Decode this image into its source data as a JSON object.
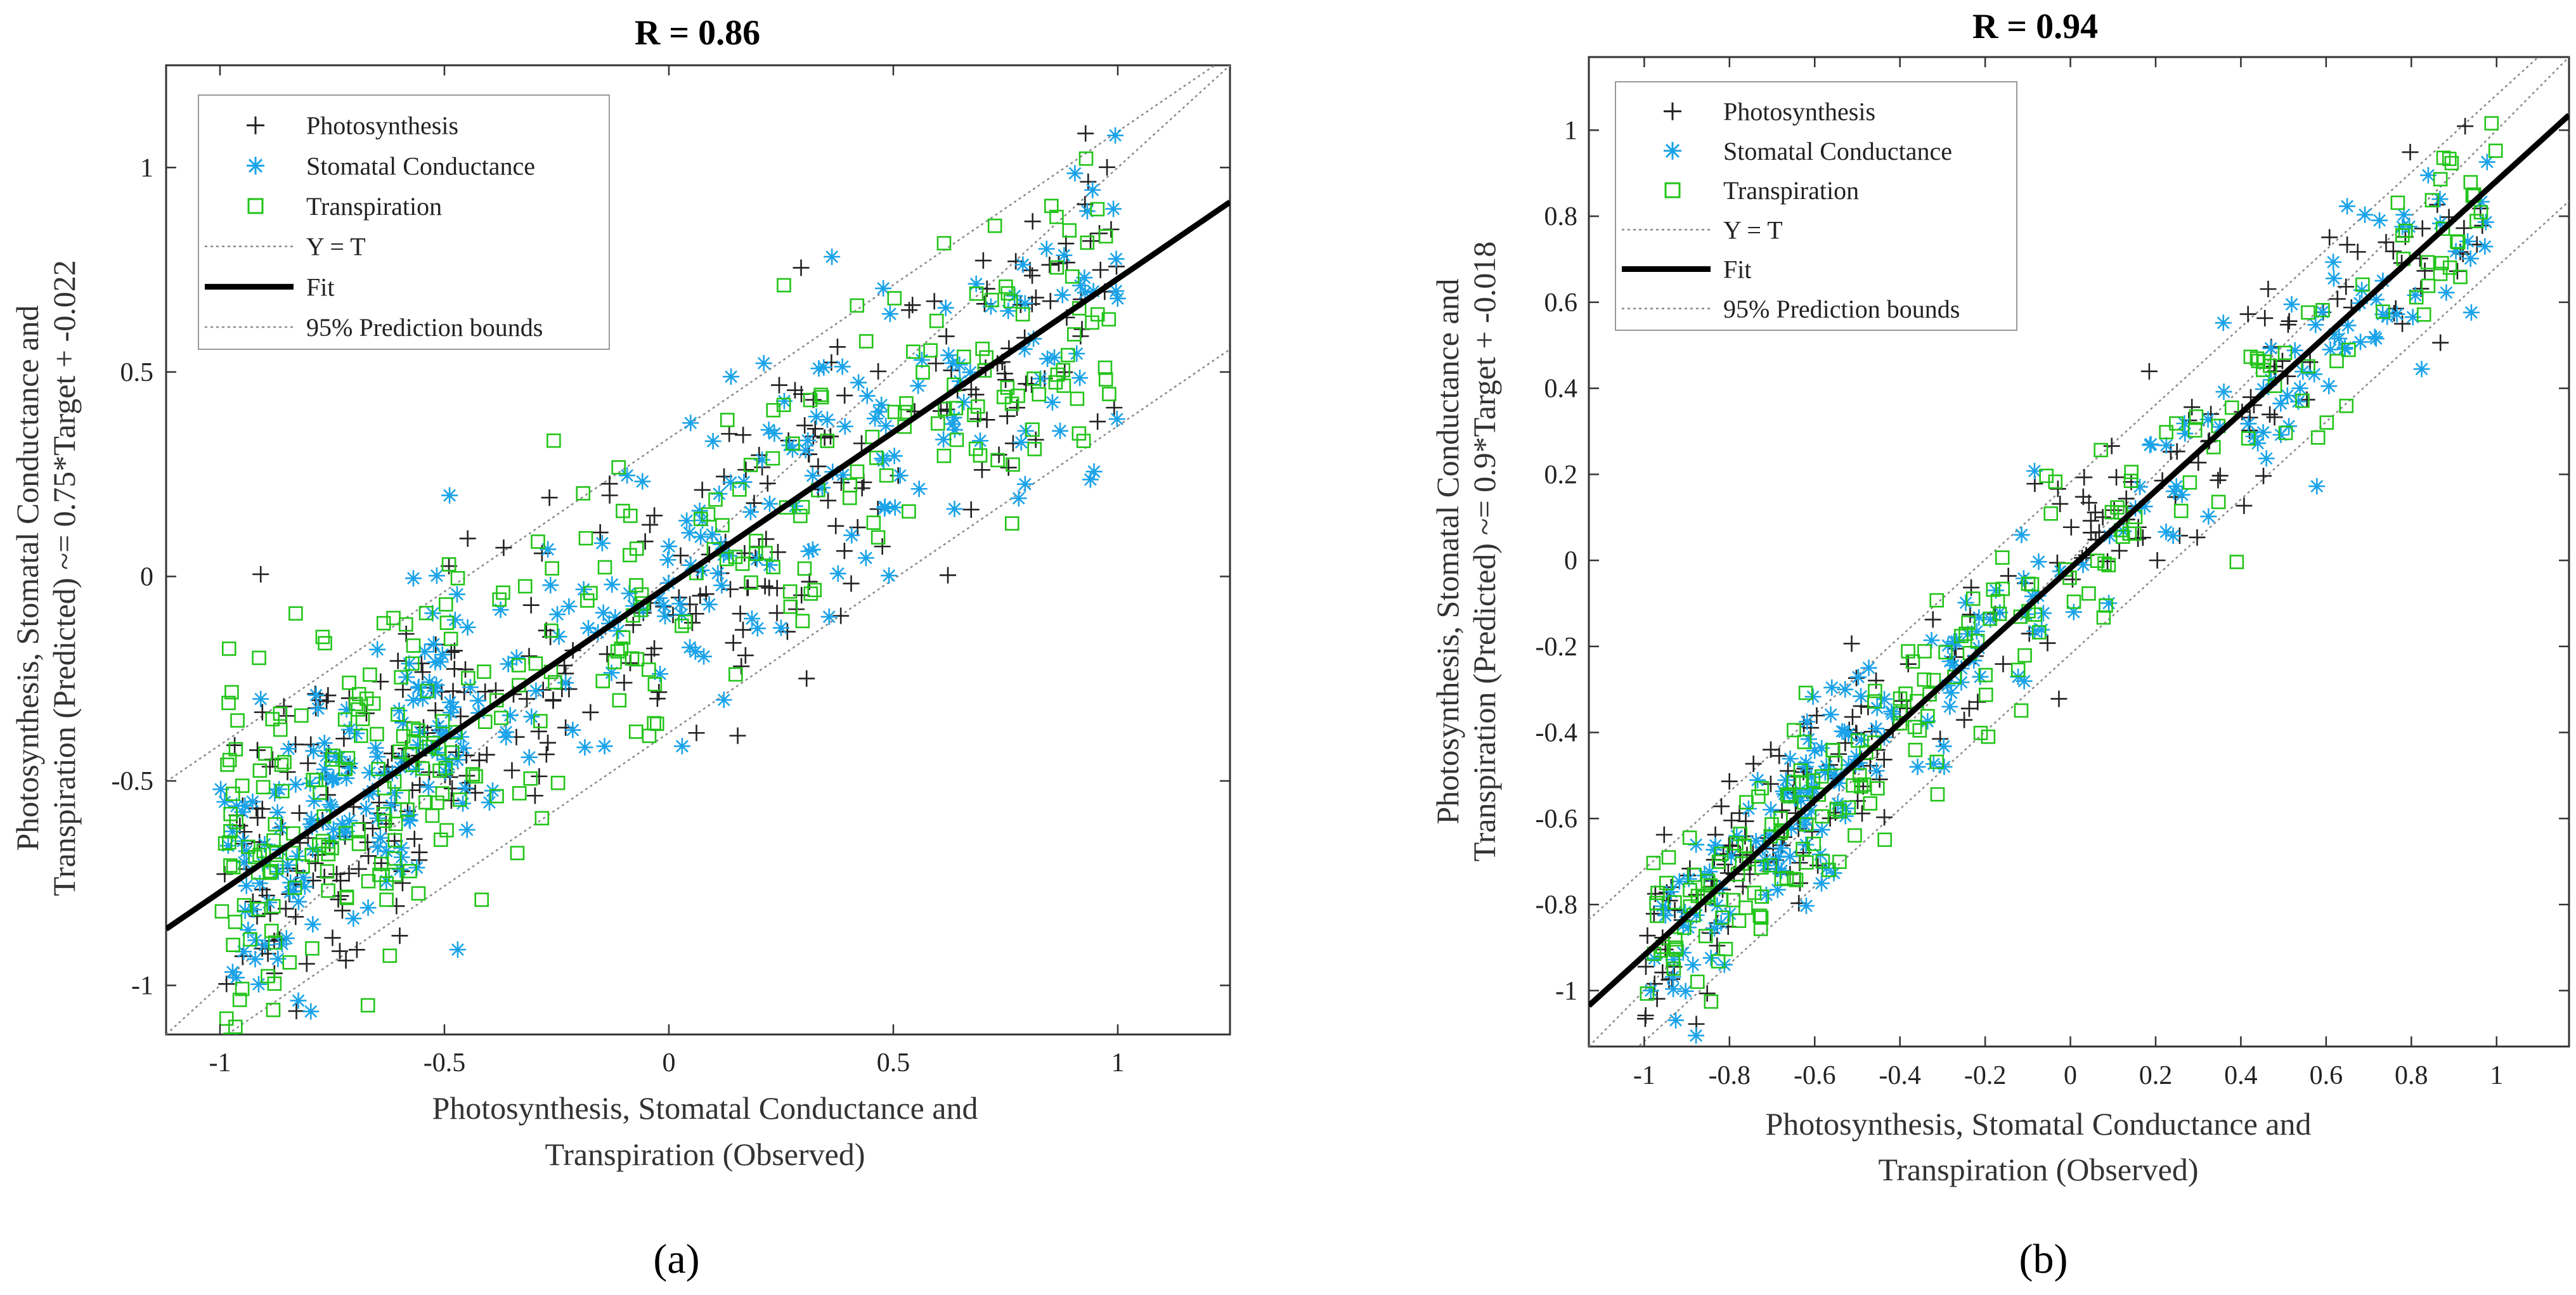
{
  "colors": {
    "photosynthesis": "#222222",
    "stomatal": "#1aa3e8",
    "transpiration": "#22c41a",
    "fit": "#000000",
    "bounds": "#8a8a8a"
  },
  "legend": {
    "photosynthesis": "Photosynthesis",
    "stomatal": "Stomatal Conductance",
    "transpiration": "Transpiration",
    "yt": "Y = T",
    "fit": "Fit",
    "bounds": "95% Prediction bounds"
  },
  "chart_data": [
    {
      "type": "scatter",
      "title": "R = 0.86",
      "caption": "(a)",
      "xlabel_lines": [
        "Photosynthesis, Stomatal Conductance and",
        "Transpiration (Observed)"
      ],
      "ylabel_lines": [
        "Photosynthesis, Stomatal Conductance and",
        "Transpiration (Predicted) ~= 0.75*Target + -0.022"
      ],
      "xlim": [
        -1.12,
        1.25
      ],
      "ylim": [
        -1.12,
        1.25
      ],
      "xticks": [
        -1,
        -0.5,
        0,
        0.5,
        1
      ],
      "yticks": [
        -1,
        -0.5,
        0,
        0.5,
        1
      ],
      "xtick_labels": [
        "-1",
        "-0.5",
        "0",
        "0.5",
        "1"
      ],
      "ytick_labels": [
        "-1",
        "-0.5",
        "0",
        "0.5",
        "1"
      ],
      "fit": {
        "slope": 0.75,
        "intercept": -0.022
      },
      "pred_bounds_halfwidth": 0.36,
      "series_params": {
        "n": 330,
        "noise": 0.19,
        "seed": 11
      },
      "series": [
        {
          "name": "Photosynthesis",
          "marker": "plus"
        },
        {
          "name": "Stomatal Conductance",
          "marker": "asterisk"
        },
        {
          "name": "Transpiration",
          "marker": "square"
        }
      ]
    },
    {
      "type": "scatter",
      "title": "R = 0.94",
      "caption": "(b)",
      "xlabel_lines": [
        "Photosynthesis, Stomatal Conductance and",
        "Transpiration (Observed)"
      ],
      "ylabel_lines": [
        "Photosynthesis, Stomatal Conductance and",
        "Transpiration (Predicted) ~= 0.9*Target + -0.018"
      ],
      "xlim": [
        -1.13,
        1.17
      ],
      "ylim": [
        -1.13,
        1.17
      ],
      "xticks": [
        -1,
        -0.8,
        -0.6,
        -0.4,
        -0.2,
        0,
        0.2,
        0.4,
        0.6,
        0.8,
        1
      ],
      "yticks": [
        -1,
        -0.8,
        -0.6,
        -0.4,
        -0.2,
        0,
        0.2,
        0.4,
        0.6,
        0.8,
        1
      ],
      "xtick_labels": [
        "-1",
        "-0.8",
        "-0.6",
        "-0.4",
        "-0.2",
        "0",
        "0.2",
        "0.4",
        "0.6",
        "0.8",
        "1"
      ],
      "ytick_labels": [
        "-1",
        "-0.8",
        "-0.6",
        "-0.4",
        "-0.2",
        "0",
        "0.2",
        "0.4",
        "0.6",
        "0.8",
        "1"
      ],
      "fit": {
        "slope": 0.9,
        "intercept": -0.018
      },
      "pred_bounds_halfwidth": 0.2,
      "series_params": {
        "n": 230,
        "noise": 0.11,
        "seed": 29
      },
      "series": [
        {
          "name": "Photosynthesis",
          "marker": "plus"
        },
        {
          "name": "Stomatal Conductance",
          "marker": "asterisk"
        },
        {
          "name": "Transpiration",
          "marker": "square"
        }
      ]
    }
  ]
}
